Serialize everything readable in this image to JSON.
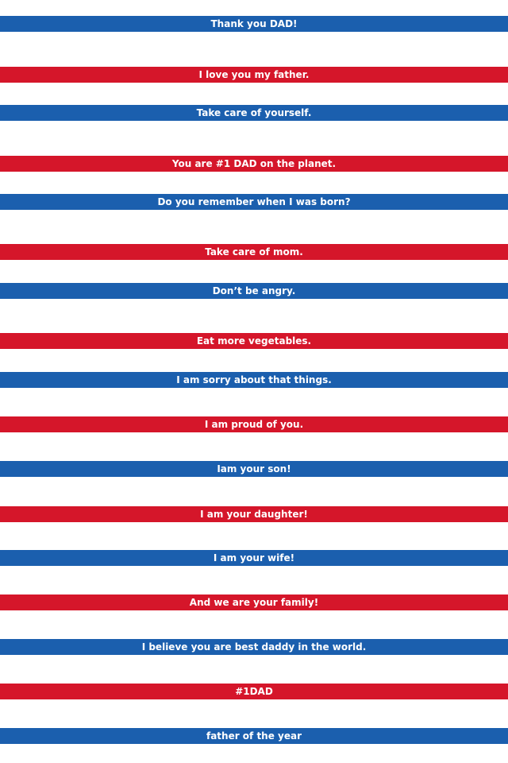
{
  "colors": {
    "blue": "#1b5fae",
    "red": "#d5162a",
    "background": "#ffffff",
    "text": "#ffffff"
  },
  "stripes": [
    {
      "text": "Thank you DAD!",
      "color": "blue"
    },
    {
      "text": "I love you my father.",
      "color": "red"
    },
    {
      "text": "Take care of yourself.",
      "color": "blue"
    },
    {
      "text": "You are #1 DAD on the planet.",
      "color": "red"
    },
    {
      "text": "Do you remember when I was born?",
      "color": "blue"
    },
    {
      "text": "Take care of mom.",
      "color": "red"
    },
    {
      "text": "Don’t be angry.",
      "color": "blue"
    },
    {
      "text": "Eat more vegetables.",
      "color": "red"
    },
    {
      "text": "I am sorry about that things.",
      "color": "blue"
    },
    {
      "text": "I am proud of you.",
      "color": "red"
    },
    {
      "text": "Iam your son!",
      "color": "blue"
    },
    {
      "text": "I am your daughter!",
      "color": "red"
    },
    {
      "text": "I am your wife!",
      "color": "blue"
    },
    {
      "text": "And we are your family!",
      "color": "red"
    },
    {
      "text": "I believe you are best daddy in the world.",
      "color": "blue"
    },
    {
      "text": "#1DAD",
      "color": "red"
    },
    {
      "text": "father of the year",
      "color": "blue"
    }
  ]
}
